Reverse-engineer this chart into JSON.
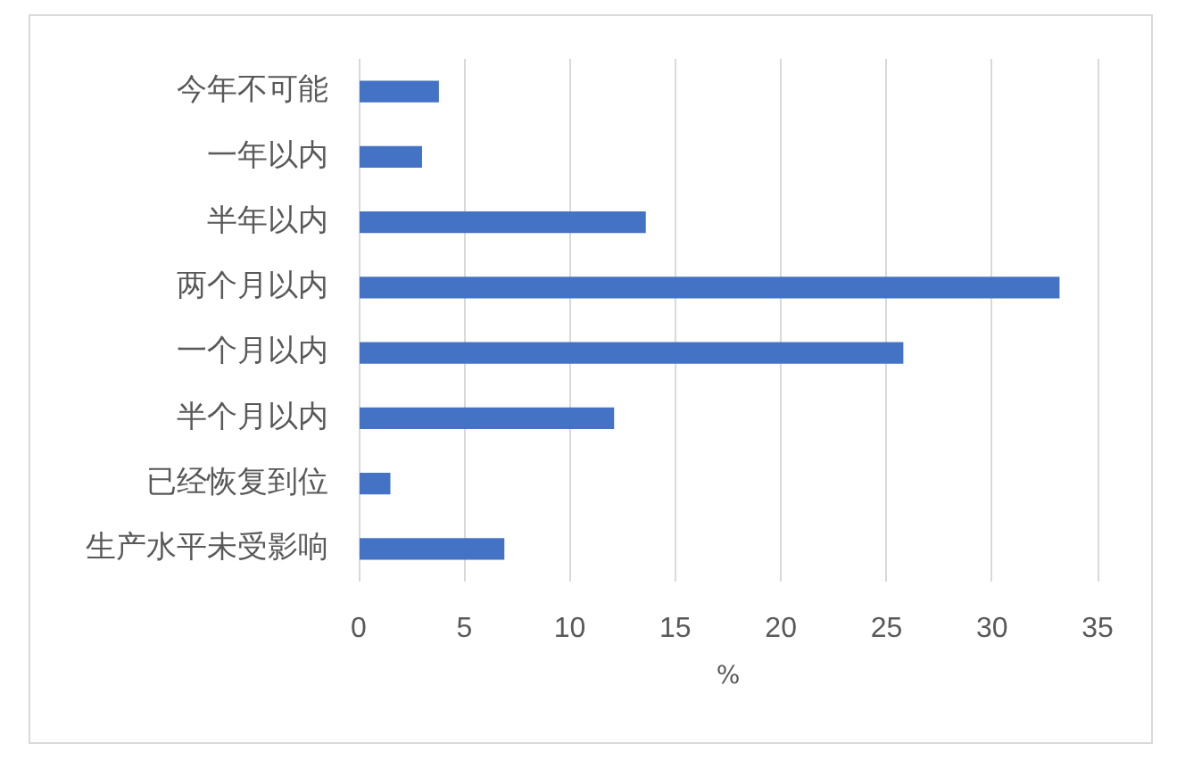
{
  "chart_data": {
    "type": "bar",
    "orientation": "horizontal",
    "categories": [
      "今年不可能",
      "一年以内",
      "半年以内",
      "两个月以内",
      "一个月以内",
      "半个月以内",
      "已经恢复到位",
      "生产水平未受影响"
    ],
    "values": [
      3.8,
      3.0,
      13.6,
      33.2,
      25.8,
      12.1,
      1.5,
      6.9
    ],
    "color": "#4472c4",
    "xlabel": "%",
    "xlim": [
      0,
      35
    ],
    "xticks": [
      0,
      5,
      10,
      15,
      20,
      25,
      30,
      35
    ],
    "grid": "x"
  }
}
